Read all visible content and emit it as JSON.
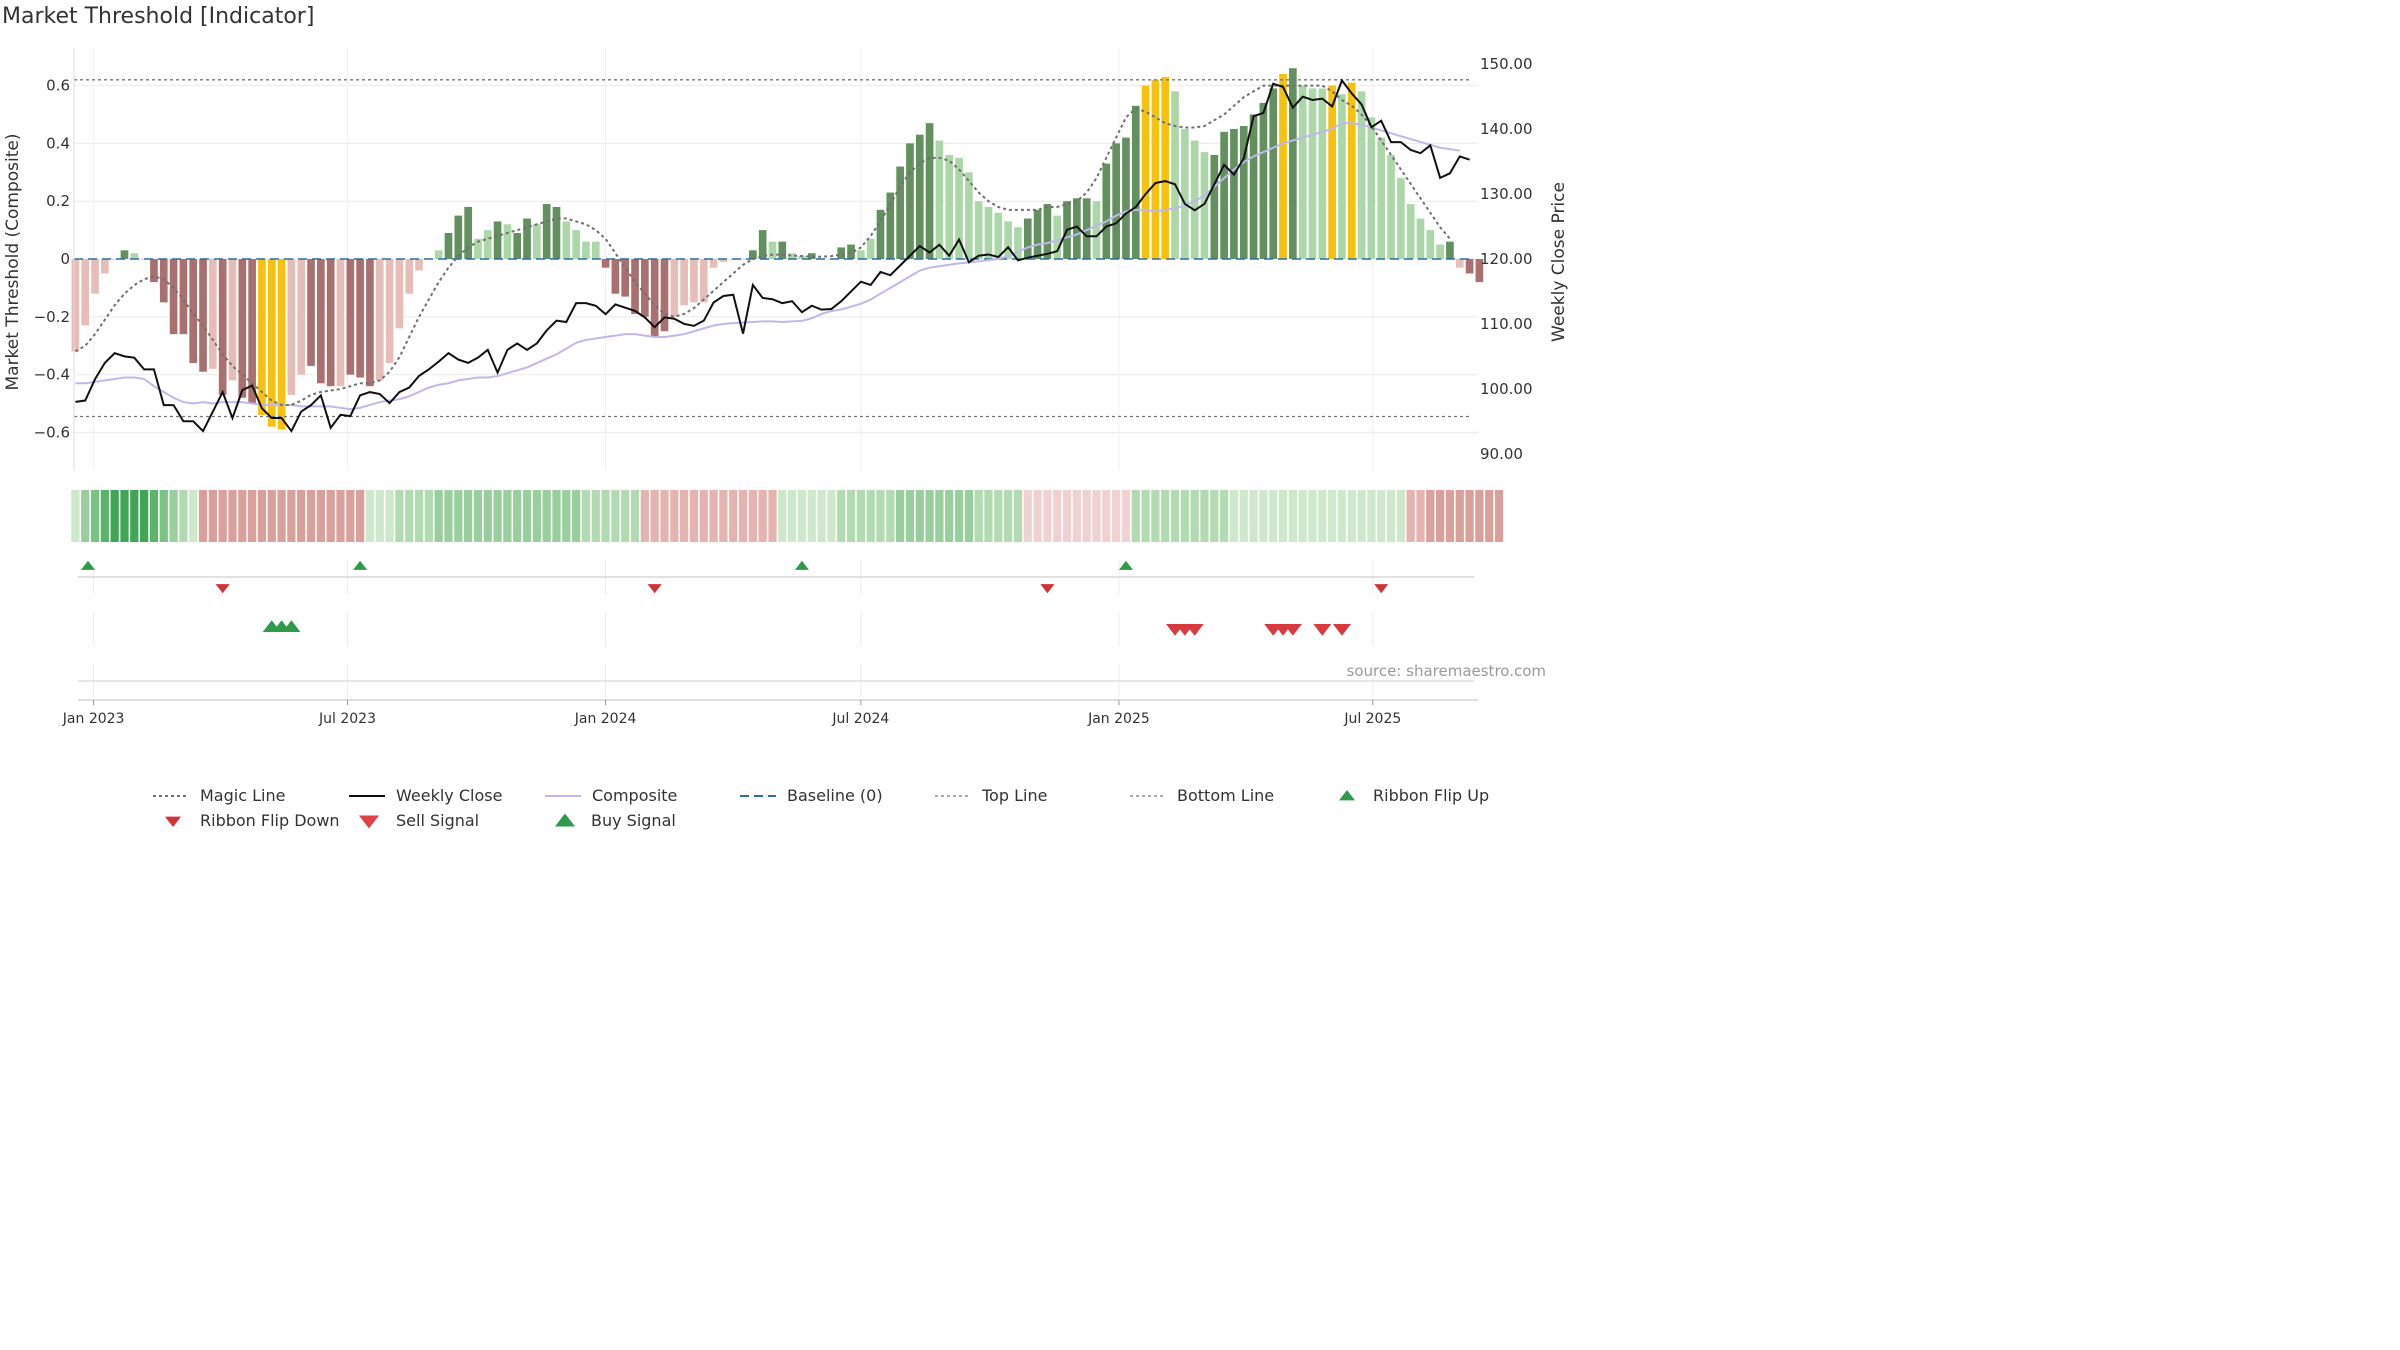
{
  "title": "Market Threshold [Indicator]",
  "source": "source: sharemaestro.com",
  "colors": {
    "bull_dark": "#62905f",
    "bull_light": "#acd8a9",
    "bear_dark": "#a9706f",
    "bear_light": "#e7bdb8",
    "extreme": "#f7c10f",
    "magic": "#707070",
    "weekly_close": "#111111",
    "composite": "#bfb8ea",
    "baseline": "#2f6f9f",
    "band": "#777777",
    "buy": "#2f9a49",
    "sell": "#d03236"
  },
  "chart_data": {
    "type": "bar",
    "ylabel": "Market Threshold (Composite)",
    "y2label": "Weekly Close Price",
    "ylim": [
      -0.73,
      0.73
    ],
    "y2lim": [
      87.5,
      152.5
    ],
    "yticks": [
      -0.6,
      -0.4,
      -0.2,
      0,
      0.2,
      0.4,
      0.6
    ],
    "ytick_labels": [
      "−0.6",
      "−0.4",
      "−0.2",
      "0",
      "0.2",
      "0.4",
      "0.6"
    ],
    "y2ticks": [
      90,
      100,
      110,
      120,
      130,
      140,
      150
    ],
    "y2tick_labels": [
      "90.00",
      "100.00",
      "110.00",
      "120.00",
      "130.00",
      "140.00",
      "150.00"
    ],
    "top_line": 0.62,
    "bottom_line": -0.545,
    "x_range": [
      "2022-12-18",
      "2025-09-14"
    ],
    "xtick_dates": [
      "2023-01-01",
      "2023-07-01",
      "2024-01-01",
      "2024-07-01",
      "2025-01-01",
      "2025-07-01"
    ],
    "xtick_labels": [
      "Jan 2023",
      "Jul 2023",
      "Jan 2024",
      "Jul 2024",
      "Jan 2025",
      "Jul 2025"
    ],
    "start_week": "2022-12-19",
    "week_days": 7,
    "bars": [
      -0.32,
      -0.23,
      -0.12,
      -0.05,
      0,
      0.03,
      0.02,
      0,
      -0.08,
      -0.15,
      -0.26,
      -0.26,
      -0.36,
      -0.39,
      -0.38,
      -0.47,
      -0.42,
      -0.48,
      -0.5,
      -0.54,
      -0.58,
      -0.59,
      -0.47,
      -0.4,
      -0.37,
      -0.43,
      -0.44,
      -0.44,
      -0.4,
      -0.41,
      -0.44,
      -0.42,
      -0.36,
      -0.24,
      -0.12,
      -0.04,
      0,
      0.03,
      0.09,
      0.15,
      0.18,
      0.07,
      0.1,
      0.13,
      0.12,
      0.09,
      0.14,
      0.12,
      0.19,
      0.18,
      0.13,
      0.1,
      0.06,
      0.06,
      -0.03,
      -0.12,
      -0.13,
      -0.19,
      -0.2,
      -0.27,
      -0.25,
      -0.2,
      -0.16,
      -0.15,
      -0.15,
      -0.03,
      -0.01,
      0,
      0,
      0.03,
      0.1,
      0.06,
      0.06,
      0.02,
      0.01,
      0.02,
      0,
      0,
      0.04,
      0.05,
      0.03,
      0.07,
      0.17,
      0.23,
      0.32,
      0.4,
      0.43,
      0.47,
      0.41,
      0.36,
      0.35,
      0.3,
      0.2,
      0.18,
      0.16,
      0.13,
      0.11,
      0.14,
      0.17,
      0.19,
      0.15,
      0.2,
      0.21,
      0.21,
      0.2,
      0.33,
      0.4,
      0.42,
      0.53,
      0.6,
      0.62,
      0.63,
      0.58,
      0.45,
      0.41,
      0.37,
      0.36,
      0.44,
      0.45,
      0.46,
      0.5,
      0.54,
      0.59,
      0.64,
      0.66,
      0.6,
      0.59,
      0.59,
      0.6,
      0.57,
      0.61,
      0.58,
      0.49,
      0.42,
      0.36,
      0.28,
      0.19,
      0.14,
      0.1,
      0.05,
      0.06,
      -0.03,
      -0.05,
      -0.08
    ],
    "bar_shades": [
      "bear_light",
      "bear_light",
      "bear_light",
      "bear_light",
      "bull_light",
      "bull_dark",
      "bull_light",
      "bull_light",
      "bear_dark",
      "bear_dark",
      "bear_dark",
      "bear_dark",
      "bear_dark",
      "bear_dark",
      "bear_light",
      "bear_dark",
      "bear_light",
      "bear_dark",
      "bear_dark",
      "extreme",
      "extreme",
      "extreme",
      "bear_light",
      "bear_light",
      "bear_dark",
      "bear_dark",
      "bear_dark",
      "bear_light",
      "bear_dark",
      "bear_dark",
      "bear_dark",
      "bear_light",
      "bear_light",
      "bear_light",
      "bear_light",
      "bear_light",
      "bull_light",
      "bull_light",
      "bull_dark",
      "bull_dark",
      "bull_dark",
      "bull_light",
      "bull_light",
      "bull_dark",
      "bull_light",
      "bull_dark",
      "bull_dark",
      "bull_light",
      "bull_dark",
      "bull_dark",
      "bull_light",
      "bull_light",
      "bull_light",
      "bull_light",
      "bear_dark",
      "bear_dark",
      "bear_dark",
      "bear_dark",
      "bear_dark",
      "bear_dark",
      "bear_dark",
      "bear_light",
      "bear_light",
      "bear_light",
      "bear_light",
      "bear_light",
      "bear_light",
      "bull_light",
      "bull_light",
      "bull_dark",
      "bull_dark",
      "bull_light",
      "bull_dark",
      "bull_light",
      "bull_light",
      "bull_dark",
      "bull_light",
      "bull_light",
      "bull_dark",
      "bull_dark",
      "bull_light",
      "bull_light",
      "bull_dark",
      "bull_dark",
      "bull_dark",
      "bull_dark",
      "bull_dark",
      "bull_dark",
      "bull_light",
      "bull_light",
      "bull_light",
      "bull_light",
      "bull_light",
      "bull_light",
      "bull_light",
      "bull_light",
      "bull_light",
      "bull_dark",
      "bull_dark",
      "bull_dark",
      "bull_light",
      "bull_dark",
      "bull_dark",
      "bull_dark",
      "bull_light",
      "bull_dark",
      "bull_dark",
      "bull_dark",
      "bull_dark",
      "extreme",
      "extreme",
      "extreme",
      "bull_light",
      "bull_light",
      "bull_light",
      "bull_light",
      "bull_dark",
      "bull_dark",
      "bull_dark",
      "bull_dark",
      "bull_dark",
      "bull_dark",
      "bull_dark",
      "extreme",
      "bull_dark",
      "bull_light",
      "bull_light",
      "bull_light",
      "extreme",
      "bull_light",
      "extreme",
      "bull_light",
      "bull_light",
      "bull_light",
      "bull_light",
      "bull_light",
      "bull_light",
      "bull_light",
      "bull_light",
      "bull_light",
      "bull_dark",
      "bear_light",
      "bear_dark",
      "bear_dark"
    ],
    "weekly_close": [
      98,
      98.2,
      101.5,
      104,
      105.5,
      105,
      104.8,
      103,
      103,
      97.5,
      97.5,
      95,
      95,
      93.5,
      96.5,
      99.5,
      95.5,
      99.8,
      100.5,
      97,
      95.5,
      95.5,
      93.5,
      96.5,
      97.5,
      99,
      94,
      96,
      95.8,
      99,
      99.5,
      99.2,
      97.8,
      99.5,
      100.2,
      102,
      103,
      104.2,
      105.5,
      104.5,
      104,
      104.8,
      106,
      102.5,
      106,
      107,
      106,
      107,
      109,
      110.5,
      110.3,
      113.2,
      113.2,
      112.8,
      111.5,
      113,
      112.5,
      112,
      111,
      109.5,
      111,
      110.8,
      110,
      109.7,
      110.5,
      113.3,
      114.3,
      114.5,
      108.5,
      116,
      114,
      113.8,
      113.2,
      113.5,
      111.8,
      112.8,
      112.2,
      112.3,
      113.5,
      115,
      116.5,
      116,
      118,
      117.5,
      119,
      120.5,
      122,
      121,
      122.2,
      120.5,
      123,
      119.5,
      120.5,
      120.7,
      120.3,
      121.8,
      119.8,
      120.2,
      120.5,
      120.8,
      121.2,
      124.5,
      125,
      123.5,
      123.5,
      125,
      125.5,
      127,
      128,
      130,
      131.7,
      132,
      131.5,
      128.5,
      127.5,
      128.5,
      131.5,
      134.5,
      133,
      135.5,
      142,
      142.5,
      147,
      146.5,
      143.3,
      145,
      144.5,
      144.7,
      143.5,
      147.5,
      145.5,
      143.8,
      140.3,
      141.3,
      138,
      138,
      136.8,
      136.3,
      137.5,
      132.5,
      133.2,
      135.8,
      135.3
    ],
    "composite": [
      -0.43,
      -0.43,
      -0.425,
      -0.42,
      -0.415,
      -0.41,
      -0.41,
      -0.415,
      -0.44,
      -0.46,
      -0.48,
      -0.495,
      -0.5,
      -0.495,
      -0.5,
      -0.495,
      -0.495,
      -0.495,
      -0.5,
      -0.505,
      -0.505,
      -0.505,
      -0.505,
      -0.51,
      -0.51,
      -0.51,
      -0.51,
      -0.515,
      -0.52,
      -0.515,
      -0.505,
      -0.495,
      -0.49,
      -0.485,
      -0.475,
      -0.46,
      -0.445,
      -0.435,
      -0.43,
      -0.42,
      -0.415,
      -0.41,
      -0.41,
      -0.405,
      -0.395,
      -0.385,
      -0.375,
      -0.36,
      -0.345,
      -0.33,
      -0.31,
      -0.29,
      -0.28,
      -0.275,
      -0.27,
      -0.265,
      -0.26,
      -0.26,
      -0.265,
      -0.27,
      -0.27,
      -0.265,
      -0.26,
      -0.25,
      -0.24,
      -0.23,
      -0.225,
      -0.222,
      -0.22,
      -0.218,
      -0.216,
      -0.216,
      -0.218,
      -0.216,
      -0.214,
      -0.205,
      -0.19,
      -0.18,
      -0.175,
      -0.165,
      -0.155,
      -0.14,
      -0.12,
      -0.1,
      -0.08,
      -0.06,
      -0.04,
      -0.03,
      -0.025,
      -0.02,
      -0.015,
      -0.012,
      -0.008,
      -0.004,
      0,
      0.01,
      0.025,
      0.04,
      0.05,
      0.055,
      0.065,
      0.075,
      0.085,
      0.1,
      0.115,
      0.13,
      0.15,
      0.165,
      0.17,
      0.17,
      0.165,
      0.17,
      0.175,
      0.185,
      0.2,
      0.22,
      0.25,
      0.28,
      0.31,
      0.335,
      0.355,
      0.37,
      0.385,
      0.4,
      0.41,
      0.42,
      0.43,
      0.44,
      0.45,
      0.47,
      0.47,
      0.465,
      0.455,
      0.445,
      0.435,
      0.425,
      0.415,
      0.405,
      0.395,
      0.385,
      0.38,
      0.375
    ],
    "magic_line": [
      -0.32,
      -0.3,
      -0.26,
      -0.21,
      -0.16,
      -0.12,
      -0.09,
      -0.07,
      -0.06,
      -0.07,
      -0.1,
      -0.14,
      -0.19,
      -0.23,
      -0.28,
      -0.33,
      -0.37,
      -0.4,
      -0.43,
      -0.46,
      -0.49,
      -0.505,
      -0.505,
      -0.49,
      -0.47,
      -0.46,
      -0.455,
      -0.45,
      -0.44,
      -0.43,
      -0.43,
      -0.42,
      -0.39,
      -0.34,
      -0.27,
      -0.2,
      -0.14,
      -0.08,
      -0.03,
      0.01,
      0.04,
      0.06,
      0.07,
      0.08,
      0.09,
      0.1,
      0.11,
      0.12,
      0.13,
      0.14,
      0.14,
      0.13,
      0.12,
      0.1,
      0.07,
      0.02,
      -0.03,
      -0.08,
      -0.12,
      -0.16,
      -0.19,
      -0.2,
      -0.19,
      -0.17,
      -0.14,
      -0.11,
      -0.08,
      -0.05,
      -0.02,
      0,
      0.01,
      0.015,
      0.015,
      0.012,
      0.01,
      0.008,
      0.008,
      0.01,
      0.015,
      0.02,
      0.04,
      0.08,
      0.13,
      0.19,
      0.25,
      0.3,
      0.33,
      0.35,
      0.35,
      0.34,
      0.31,
      0.27,
      0.23,
      0.2,
      0.18,
      0.17,
      0.17,
      0.17,
      0.17,
      0.18,
      0.18,
      0.19,
      0.2,
      0.23,
      0.28,
      0.35,
      0.42,
      0.49,
      0.52,
      0.51,
      0.49,
      0.47,
      0.46,
      0.455,
      0.455,
      0.46,
      0.48,
      0.5,
      0.53,
      0.56,
      0.58,
      0.6,
      0.6,
      0.6,
      0.6,
      0.6,
      0.6,
      0.6,
      0.58,
      0.55,
      0.53,
      0.5,
      0.46,
      0.41,
      0.36,
      0.31,
      0.26,
      0.21,
      0.16,
      0.11,
      0.07
    ],
    "ribbon": [
      "g1",
      "g3",
      "g4",
      "g5",
      "g6",
      "g6",
      "g6",
      "g6",
      "g5",
      "g4",
      "g3",
      "g2",
      "g1",
      "r3",
      "r3",
      "r3",
      "r3",
      "r3",
      "r3",
      "r3",
      "r3",
      "r3",
      "r3",
      "r3",
      "r3",
      "r3",
      "r3",
      "r3",
      "r3",
      "r3",
      "g1",
      "g1",
      "g1",
      "g2",
      "g2",
      "g2",
      "g2",
      "g3",
      "g3",
      "g3",
      "g3",
      "g3",
      "g3",
      "g3",
      "g3",
      "g3",
      "g3",
      "g3",
      "g3",
      "g3",
      "g3",
      "g3",
      "g2",
      "g2",
      "g2",
      "g2",
      "g2",
      "g2",
      "r2",
      "r2",
      "r2",
      "r2",
      "r2",
      "r2",
      "r2",
      "r2",
      "r2",
      "r2",
      "r2",
      "r2",
      "r2",
      "r2",
      "g1",
      "g1",
      "g1",
      "g1",
      "g1",
      "g1",
      "g2",
      "g2",
      "g2",
      "g2",
      "g2",
      "g2",
      "g3",
      "g3",
      "g3",
      "g3",
      "g3",
      "g3",
      "g3",
      "g3",
      "g2",
      "g2",
      "g2",
      "g2",
      "g2",
      "r1",
      "r1",
      "r1",
      "r1",
      "r1",
      "r1",
      "r1",
      "r1",
      "r1",
      "r1",
      "r1",
      "g2",
      "g2",
      "g2",
      "g2",
      "g2",
      "g2",
      "g2",
      "g2",
      "g2",
      "g2",
      "g1",
      "g1",
      "g1",
      "g1",
      "g1",
      "g1",
      "g1",
      "g1",
      "g1",
      "g1",
      "g1",
      "g1",
      "g1",
      "g1",
      "g1",
      "g1",
      "g1",
      "g1",
      "r2",
      "r2",
      "r3",
      "r3",
      "r3",
      "r3",
      "r3",
      "r3",
      "r3",
      "r3"
    ],
    "ribbon_flip_up": [
      "2022-12-19",
      "2023-07-10",
      "2024-05-20",
      "2025-01-06"
    ],
    "ribbon_flip_down": [
      "2023-04-03",
      "2024-02-05",
      "2024-11-11",
      "2025-07-07"
    ],
    "buy_signals": [
      "2023-05-08",
      "2023-05-15",
      "2023-05-22"
    ],
    "sell_signals": [
      "2025-02-10",
      "2025-02-17",
      "2025-02-24",
      "2025-04-21",
      "2025-04-28",
      "2025-05-05",
      "2025-05-26",
      "2025-06-09"
    ],
    "legend": [
      {
        "label": "Magic Line",
        "key": "magic"
      },
      {
        "label": "Weekly Close",
        "key": "weekly_close"
      },
      {
        "label": "Composite",
        "key": "composite"
      },
      {
        "label": "Baseline (0)",
        "key": "baseline"
      },
      {
        "label": "Top Line",
        "key": "band"
      },
      {
        "label": "Bottom Line",
        "key": "band"
      },
      {
        "label": "Ribbon Flip Up",
        "key": "buy"
      },
      {
        "label": "Ribbon Flip Down",
        "key": "sell"
      },
      {
        "label": "Sell Signal",
        "key": "sell"
      },
      {
        "label": "Buy Signal",
        "key": "buy"
      }
    ],
    "legend_placement": "bottom",
    "grid": true
  }
}
